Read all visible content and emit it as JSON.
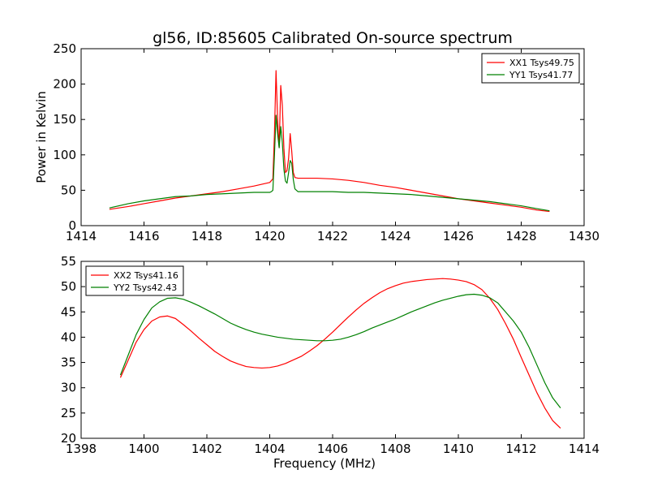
{
  "chart_data": [
    {
      "type": "line",
      "title": "gl56, ID:85605 Calibrated On-source spectrum",
      "xlabel": "",
      "ylabel": "Power in Kelvin",
      "xlim": [
        1414,
        1430
      ],
      "ylim": [
        0,
        250
      ],
      "xticks": [
        "1414",
        "1416",
        "1418",
        "1420",
        "1422",
        "1424",
        "1426",
        "1428",
        "1430"
      ],
      "yticks": [
        "0",
        "50",
        "100",
        "150",
        "200",
        "250"
      ],
      "grid": false,
      "legend_position": "top-right",
      "series": [
        {
          "name": "XX1 Tsys49.75",
          "color": "#ff0000",
          "x": [
            1414.9,
            1415.5,
            1416,
            1416.5,
            1417,
            1417.5,
            1418,
            1418.5,
            1419,
            1419.5,
            1420,
            1420.1,
            1420.15,
            1420.2,
            1420.25,
            1420.3,
            1420.35,
            1420.4,
            1420.45,
            1420.5,
            1420.55,
            1420.6,
            1420.65,
            1420.7,
            1420.75,
            1420.8,
            1420.9,
            1421,
            1421.5,
            1422,
            1422.5,
            1423,
            1423.5,
            1424,
            1424.5,
            1425,
            1425.5,
            1426,
            1426.5,
            1427,
            1427.5,
            1428,
            1428.5,
            1428.9
          ],
          "y": [
            23,
            27,
            31,
            35,
            39,
            42,
            45,
            48,
            52,
            56,
            61,
            66,
            130,
            219,
            150,
            110,
            198,
            170,
            110,
            75,
            78,
            95,
            130,
            105,
            75,
            68,
            67,
            67,
            67,
            66,
            64,
            61,
            57,
            54,
            50,
            46,
            42,
            38,
            35,
            32,
            29,
            26,
            22,
            20
          ]
        },
        {
          "name": "YY1 Tsys41.77",
          "color": "#008000",
          "x": [
            1414.9,
            1415.5,
            1416,
            1416.5,
            1417,
            1417.5,
            1418,
            1418.5,
            1419,
            1419.5,
            1420,
            1420.05,
            1420.1,
            1420.15,
            1420.2,
            1420.25,
            1420.3,
            1420.35,
            1420.4,
            1420.45,
            1420.5,
            1420.55,
            1420.6,
            1420.65,
            1420.7,
            1420.75,
            1420.8,
            1420.9,
            1421,
            1421.5,
            1422,
            1422.5,
            1423,
            1423.5,
            1424,
            1424.5,
            1425,
            1425.5,
            1426,
            1426.5,
            1427,
            1427.5,
            1428,
            1428.5,
            1428.9
          ],
          "y": [
            25,
            31,
            35,
            38,
            41,
            42,
            44,
            45,
            46,
            47,
            47,
            48,
            50,
            100,
            156,
            130,
            110,
            140,
            118,
            80,
            63,
            60,
            75,
            92,
            88,
            65,
            52,
            48,
            48,
            48,
            48,
            47,
            47,
            46,
            45,
            44,
            42,
            40,
            38,
            36,
            34,
            31,
            28,
            24,
            21
          ]
        }
      ]
    },
    {
      "type": "line",
      "title": "",
      "xlabel": "Frequency (MHz)",
      "ylabel": "",
      "xlim": [
        1398,
        1414
      ],
      "ylim": [
        20,
        55
      ],
      "xticks": [
        "1398",
        "1400",
        "1402",
        "1404",
        "1406",
        "1408",
        "1410",
        "1412",
        "1414"
      ],
      "yticks": [
        "20",
        "25",
        "30",
        "35",
        "40",
        "45",
        "50",
        "55"
      ],
      "grid": false,
      "legend_position": "top-left",
      "series": [
        {
          "name": "XX2 Tsys41.16",
          "color": "#ff0000",
          "x": [
            1399.25,
            1399.5,
            1399.75,
            1400,
            1400.25,
            1400.5,
            1400.75,
            1401,
            1401.25,
            1401.5,
            1401.75,
            1402,
            1402.25,
            1402.5,
            1402.75,
            1403,
            1403.25,
            1403.5,
            1403.75,
            1404,
            1404.25,
            1404.5,
            1404.75,
            1405,
            1405.25,
            1405.5,
            1405.75,
            1406,
            1406.25,
            1406.5,
            1406.75,
            1407,
            1407.25,
            1407.5,
            1407.75,
            1408,
            1408.25,
            1408.5,
            1408.75,
            1409,
            1409.25,
            1409.5,
            1409.75,
            1410,
            1410.25,
            1410.5,
            1410.75,
            1411,
            1411.25,
            1411.5,
            1411.75,
            1412,
            1412.25,
            1412.5,
            1412.75,
            1413,
            1413.25
          ],
          "y": [
            32,
            35.5,
            39,
            41.5,
            43.2,
            44,
            44.2,
            43.7,
            42.5,
            41.2,
            39.8,
            38.5,
            37.2,
            36.2,
            35.3,
            34.7,
            34.2,
            34,
            33.9,
            34,
            34.3,
            34.8,
            35.5,
            36.2,
            37.2,
            38.3,
            39.6,
            41,
            42.5,
            44,
            45.4,
            46.7,
            47.8,
            48.8,
            49.6,
            50.2,
            50.7,
            51,
            51.2,
            51.4,
            51.5,
            51.6,
            51.5,
            51.3,
            51,
            50.4,
            49.4,
            47.7,
            45.5,
            42.7,
            39.6,
            36,
            32.5,
            29,
            26,
            23.5,
            22
          ]
        },
        {
          "name": "YY2 Tsys42.43",
          "color": "#008000",
          "x": [
            1399.25,
            1399.5,
            1399.75,
            1400,
            1400.25,
            1400.5,
            1400.75,
            1401,
            1401.25,
            1401.5,
            1401.75,
            1402,
            1402.25,
            1402.5,
            1402.75,
            1403,
            1403.25,
            1403.5,
            1403.75,
            1404,
            1404.25,
            1404.5,
            1404.75,
            1405,
            1405.25,
            1405.5,
            1405.75,
            1406,
            1406.25,
            1406.5,
            1406.75,
            1407,
            1407.25,
            1407.5,
            1407.75,
            1408,
            1408.25,
            1408.5,
            1408.75,
            1409,
            1409.25,
            1409.5,
            1409.75,
            1410,
            1410.25,
            1410.5,
            1410.75,
            1411,
            1411.25,
            1411.5,
            1411.75,
            1412,
            1412.25,
            1412.5,
            1412.75,
            1413,
            1413.25
          ],
          "y": [
            32.5,
            36.5,
            40.5,
            43.5,
            45.8,
            47,
            47.7,
            47.8,
            47.5,
            46.9,
            46.2,
            45.4,
            44.6,
            43.7,
            42.8,
            42.1,
            41.5,
            41,
            40.6,
            40.3,
            40,
            39.8,
            39.6,
            39.5,
            39.4,
            39.3,
            39.3,
            39.4,
            39.6,
            40,
            40.5,
            41.1,
            41.8,
            42.4,
            43,
            43.6,
            44.3,
            45,
            45.6,
            46.2,
            46.8,
            47.3,
            47.7,
            48.1,
            48.4,
            48.5,
            48.3,
            47.8,
            46.8,
            45,
            43.2,
            41,
            38,
            34.5,
            31,
            28,
            26
          ]
        }
      ]
    }
  ]
}
